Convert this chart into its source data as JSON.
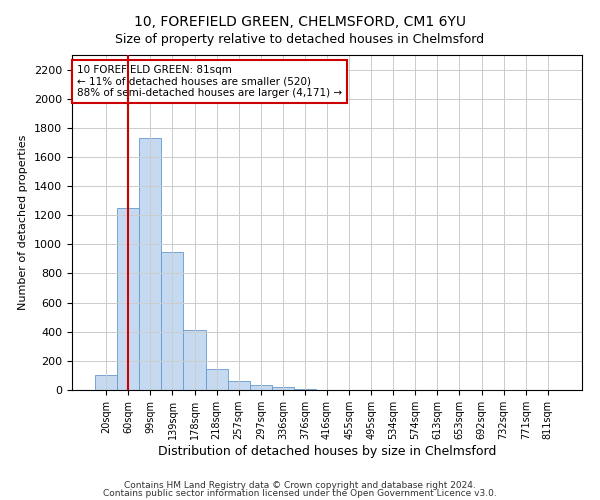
{
  "title": "10, FOREFIELD GREEN, CHELMSFORD, CM1 6YU",
  "subtitle": "Size of property relative to detached houses in Chelmsford",
  "xlabel": "Distribution of detached houses by size in Chelmsford",
  "ylabel": "Number of detached properties",
  "bar_labels": [
    "20sqm",
    "60sqm",
    "99sqm",
    "139sqm",
    "178sqm",
    "218sqm",
    "257sqm",
    "297sqm",
    "336sqm",
    "376sqm",
    "416sqm",
    "455sqm",
    "495sqm",
    "534sqm",
    "574sqm",
    "613sqm",
    "653sqm",
    "692sqm",
    "732sqm",
    "771sqm",
    "811sqm"
  ],
  "bar_values": [
    100,
    1250,
    1730,
    950,
    410,
    145,
    65,
    35,
    20,
    5,
    0,
    0,
    0,
    0,
    0,
    0,
    0,
    0,
    0,
    0,
    0
  ],
  "bar_color": "#c5d9f1",
  "bar_edge_color": "#6699cc",
  "vline_x": 1.0,
  "vline_color": "#cc0000",
  "annotation_text": "10 FOREFIELD GREEN: 81sqm\n← 11% of detached houses are smaller (520)\n88% of semi-detached houses are larger (4,171) →",
  "annotation_box_color": "#ffffff",
  "annotation_box_edge": "#cc0000",
  "ylim": [
    0,
    2300
  ],
  "yticks": [
    0,
    200,
    400,
    600,
    800,
    1000,
    1200,
    1400,
    1600,
    1800,
    2000,
    2200
  ],
  "footer_line1": "Contains HM Land Registry data © Crown copyright and database right 2024.",
  "footer_line2": "Contains public sector information licensed under the Open Government Licence v3.0.",
  "bg_color": "#ffffff",
  "grid_color": "#cccccc",
  "title_fontsize": 10,
  "subtitle_fontsize": 9,
  "tick_fontsize": 7,
  "ylabel_fontsize": 8,
  "xlabel_fontsize": 9
}
